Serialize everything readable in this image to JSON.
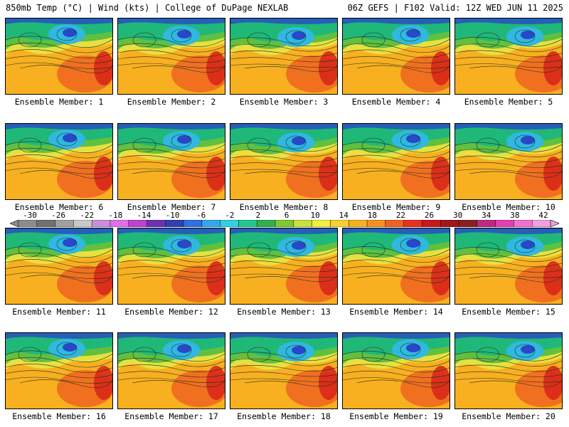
{
  "header": {
    "left": "850mb Temp (°C) | Wind (kts) | College of DuPage NEXLAB",
    "right": "06Z GEFS | F102 Valid: 12Z WED JUN 11 2025"
  },
  "label_prefix": "Ensemble Member: ",
  "members": [
    {
      "label": "Ensemble Member: 1"
    },
    {
      "label": "Ensemble Member: 2"
    },
    {
      "label": "Ensemble Member: 3"
    },
    {
      "label": "Ensemble Member: 4"
    },
    {
      "label": "Ensemble Member: 5"
    },
    {
      "label": "Ensemble Member: 6"
    },
    {
      "label": "Ensemble Member: 7"
    },
    {
      "label": "Ensemble Member: 8"
    },
    {
      "label": "Ensemble Member: 9"
    },
    {
      "label": "Ensemble Member: 10"
    },
    {
      "label": "Ensemble Member: 11"
    },
    {
      "label": "Ensemble Member: 12"
    },
    {
      "label": "Ensemble Member: 13"
    },
    {
      "label": "Ensemble Member: 14"
    },
    {
      "label": "Ensemble Member: 15"
    },
    {
      "label": "Ensemble Member: 16"
    },
    {
      "label": "Ensemble Member: 17"
    },
    {
      "label": "Ensemble Member: 18"
    },
    {
      "label": "Ensemble Member: 19"
    },
    {
      "label": "Ensemble Member: 20"
    }
  ],
  "colorbar": {
    "ticks": [
      "-30",
      "-26",
      "-22",
      "-18",
      "-14",
      "-10",
      "-6",
      "-2",
      "2",
      "6",
      "10",
      "14",
      "18",
      "22",
      "26",
      "30",
      "34",
      "38",
      "42"
    ],
    "colors": [
      "#8c8c8c",
      "#707070",
      "#a0a0a0",
      "#c8c8c8",
      "#c890d8",
      "#e070e8",
      "#c040d0",
      "#7030b0",
      "#3040b0",
      "#3070e0",
      "#30a8f0",
      "#30d0e0",
      "#20c890",
      "#30b050",
      "#80c830",
      "#c8e040",
      "#f0f040",
      "#f8d030",
      "#f8b020",
      "#f89020",
      "#f06020",
      "#e83020",
      "#c81818",
      "#a01818",
      "#882020",
      "#c02880",
      "#e040b0",
      "#f070d0",
      "#f0a0e0"
    ]
  },
  "map_colors": {
    "cold": "#2848c8",
    "cool": "#30b8e0",
    "mild": "#20b878",
    "green": "#60c040",
    "yellow": "#e8e040",
    "orange": "#f8b020",
    "hot": "#f07020",
    "red": "#d82818"
  }
}
